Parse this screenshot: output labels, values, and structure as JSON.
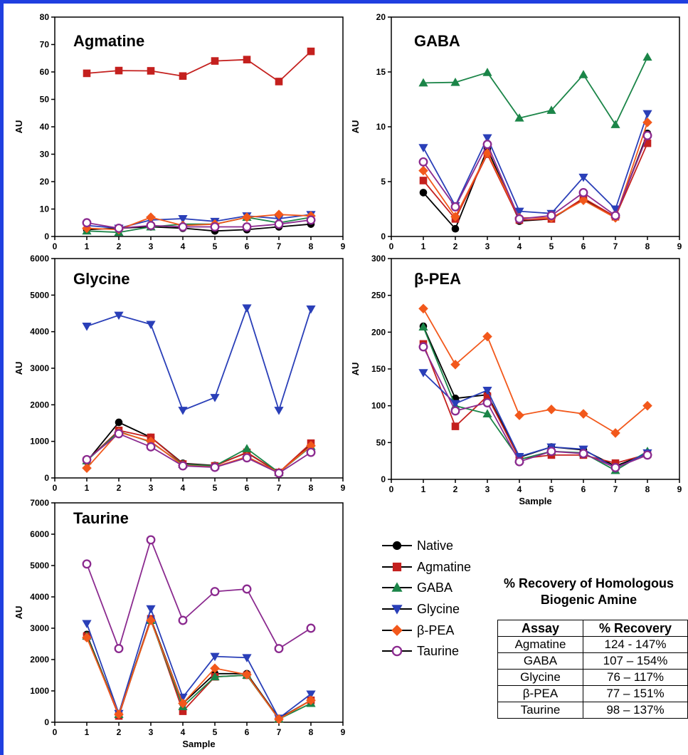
{
  "chart_data": [
    {
      "type": "line",
      "title": "Agmatine",
      "xlabel": "",
      "ylabel": "AU",
      "xlim": [
        0,
        9
      ],
      "ylim": [
        0,
        80
      ],
      "xticks": [
        0,
        1,
        2,
        3,
        4,
        5,
        6,
        7,
        8,
        9
      ],
      "yticks": [
        0,
        10,
        20,
        30,
        40,
        50,
        60,
        70,
        80
      ],
      "x": [
        1,
        2,
        3,
        4,
        5,
        6,
        7,
        8
      ],
      "series": [
        {
          "name": "Native",
          "values": [
            2.5,
            3,
            3.5,
            3,
            2,
            2.5,
            3.5,
            4.5
          ]
        },
        {
          "name": "Agmatine",
          "values": [
            59.5,
            60.5,
            60.4,
            58.5,
            64,
            64.5,
            56.5,
            67.5
          ]
        },
        {
          "name": "GABA",
          "values": [
            2,
            1.5,
            3.5,
            4.5,
            4.5,
            7,
            5,
            7
          ]
        },
        {
          "name": "Glycine",
          "values": [
            4,
            3,
            6,
            6.5,
            5.5,
            7.5,
            6.5,
            8
          ]
        },
        {
          "name": "β-PEA",
          "values": [
            3,
            2.5,
            7,
            4,
            4.5,
            7,
            8,
            7.5
          ]
        },
        {
          "name": "Taurine",
          "values": [
            5,
            3,
            4,
            3.5,
            3.5,
            3.5,
            4.5,
            6
          ]
        }
      ]
    },
    {
      "type": "line",
      "title": "GABA",
      "xlabel": "",
      "ylabel": "AU",
      "xlim": [
        0,
        9
      ],
      "ylim": [
        0,
        20
      ],
      "xticks": [
        0,
        1,
        2,
        3,
        4,
        5,
        6,
        7,
        8,
        9
      ],
      "yticks": [
        0,
        5,
        10,
        15,
        20
      ],
      "x": [
        1,
        2,
        3,
        4,
        5,
        6,
        7,
        8
      ],
      "series": [
        {
          "name": "Native",
          "values": [
            4,
            0.7,
            8,
            1.4,
            1.6,
            3.4,
            1.8,
            9.4
          ]
        },
        {
          "name": "Agmatine",
          "values": [
            5.1,
            1.6,
            7.5,
            1.5,
            1.6,
            3.5,
            1.8,
            8.5
          ]
        },
        {
          "name": "GABA",
          "values": [
            14,
            14.05,
            14.95,
            10.8,
            11.5,
            14.75,
            10.2,
            16.35
          ]
        },
        {
          "name": "Glycine",
          "values": [
            8.1,
            2.8,
            9,
            2.3,
            2.1,
            5.4,
            2.5,
            11.2
          ]
        },
        {
          "name": "β-PEA",
          "values": [
            6,
            1.8,
            7.6,
            1.7,
            1.7,
            3.3,
            1.7,
            10.4
          ]
        },
        {
          "name": "Taurine",
          "values": [
            6.8,
            2.7,
            8.4,
            1.6,
            1.9,
            4,
            1.9,
            9.2
          ]
        }
      ]
    },
    {
      "type": "line",
      "title": "Glycine",
      "xlabel": "",
      "ylabel": "AU",
      "xlim": [
        0,
        9
      ],
      "ylim": [
        0,
        6000
      ],
      "xticks": [
        0,
        1,
        2,
        3,
        4,
        5,
        6,
        7,
        8,
        9
      ],
      "yticks": [
        0,
        1000,
        2000,
        3000,
        4000,
        5000,
        6000
      ],
      "x": [
        1,
        2,
        3,
        4,
        5,
        6,
        7,
        8
      ],
      "series": [
        {
          "name": "Native",
          "values": [
            450,
            1520,
            1110,
            400,
            340,
            690,
            150,
            900
          ]
        },
        {
          "name": "Agmatine",
          "values": [
            480,
            1300,
            1110,
            380,
            330,
            700,
            150,
            950
          ]
        },
        {
          "name": "GABA",
          "values": [
            470,
            1270,
            980,
            370,
            330,
            800,
            150,
            860
          ]
        },
        {
          "name": "Glycine",
          "values": [
            4150,
            4450,
            4200,
            1850,
            2200,
            4650,
            1850,
            4620
          ]
        },
        {
          "name": "β-PEA",
          "values": [
            270,
            1250,
            1000,
            340,
            300,
            580,
            150,
            880
          ]
        },
        {
          "name": "Taurine",
          "values": [
            500,
            1210,
            850,
            330,
            290,
            550,
            130,
            700
          ]
        }
      ]
    },
    {
      "type": "line",
      "title": "β-PEA",
      "xlabel": "Sample",
      "ylabel": "AU",
      "xlim": [
        0,
        9
      ],
      "ylim": [
        0,
        300
      ],
      "xticks": [
        0,
        1,
        2,
        3,
        4,
        5,
        6,
        7,
        8,
        9
      ],
      "yticks": [
        0,
        50,
        100,
        150,
        200,
        250,
        300
      ],
      "x": [
        1,
        2,
        3,
        4,
        5,
        6,
        7,
        8
      ],
      "series": [
        {
          "name": "Native",
          "values": [
            208,
            110,
            115,
            30,
            44,
            40,
            18,
            35
          ]
        },
        {
          "name": "Agmatine",
          "values": [
            184,
            72,
            113,
            28,
            33,
            33,
            22,
            34
          ]
        },
        {
          "name": "GABA",
          "values": [
            207,
            100,
            89,
            27,
            38,
            36,
            12,
            38
          ]
        },
        {
          "name": "Glycine",
          "values": [
            145,
            103,
            121,
            31,
            44,
            41,
            15,
            36
          ]
        },
        {
          "name": "β-PEA",
          "values": [
            232,
            156,
            194,
            87,
            95,
            89,
            63,
            100
          ]
        },
        {
          "name": "Taurine",
          "values": [
            180,
            93,
            104,
            24,
            38,
            35,
            16,
            33
          ]
        }
      ]
    },
    {
      "type": "line",
      "title": "Taurine",
      "xlabel": "Sample",
      "ylabel": "AU",
      "xlim": [
        0,
        9
      ],
      "ylim": [
        0,
        7000
      ],
      "xticks": [
        0,
        1,
        2,
        3,
        4,
        5,
        6,
        7,
        8,
        9
      ],
      "yticks": [
        0,
        1000,
        2000,
        3000,
        4000,
        5000,
        6000,
        7000
      ],
      "x": [
        1,
        2,
        3,
        4,
        5,
        6,
        7,
        8
      ],
      "series": [
        {
          "name": "Native",
          "values": [
            2800,
            250,
            3300,
            600,
            1550,
            1550,
            120,
            700
          ]
        },
        {
          "name": "Agmatine",
          "values": [
            2750,
            200,
            3300,
            350,
            1450,
            1500,
            100,
            700
          ]
        },
        {
          "name": "GABA",
          "values": [
            2750,
            250,
            3250,
            500,
            1450,
            1500,
            100,
            600
          ]
        },
        {
          "name": "Glycine",
          "values": [
            3150,
            280,
            3620,
            800,
            2100,
            2060,
            130,
            900
          ]
        },
        {
          "name": "β-PEA",
          "values": [
            2700,
            250,
            3250,
            600,
            1720,
            1520,
            100,
            700
          ]
        },
        {
          "name": "Taurine",
          "values": [
            5050,
            2350,
            5820,
            3250,
            4170,
            4250,
            2350,
            3000
          ]
        }
      ]
    }
  ],
  "styles": {
    "Native": {
      "color": "#000000",
      "marker": "circle"
    },
    "Agmatine": {
      "color": "#c4201e",
      "marker": "square"
    },
    "GABA": {
      "color": "#1b8548",
      "marker": "triangle-up"
    },
    "Glycine": {
      "color": "#2a3fb8",
      "marker": "triangle-down"
    },
    "β-PEA": {
      "color": "#f2581b",
      "marker": "diamond"
    },
    "Taurine": {
      "color": "#8b2a8f",
      "marker": "open-circle"
    }
  },
  "legend": {
    "items": [
      {
        "label": "Native"
      },
      {
        "label": "Agmatine"
      },
      {
        "label": "GABA"
      },
      {
        "label": "Glycine"
      },
      {
        "label": "β-PEA"
      },
      {
        "label": "Taurine"
      }
    ]
  },
  "recovery": {
    "title_line1": "% Recovery of Homologous",
    "title_line2": "Biogenic Amine",
    "headers": [
      "Assay",
      "% Recovery"
    ],
    "rows": [
      [
        "Agmatine",
        "124 - 147%"
      ],
      [
        "GABA",
        "107 – 154%"
      ],
      [
        "Glycine",
        "76 – 117%"
      ],
      [
        "β-PEA",
        "77 – 151%"
      ],
      [
        "Taurine",
        "98 – 137%"
      ]
    ]
  }
}
